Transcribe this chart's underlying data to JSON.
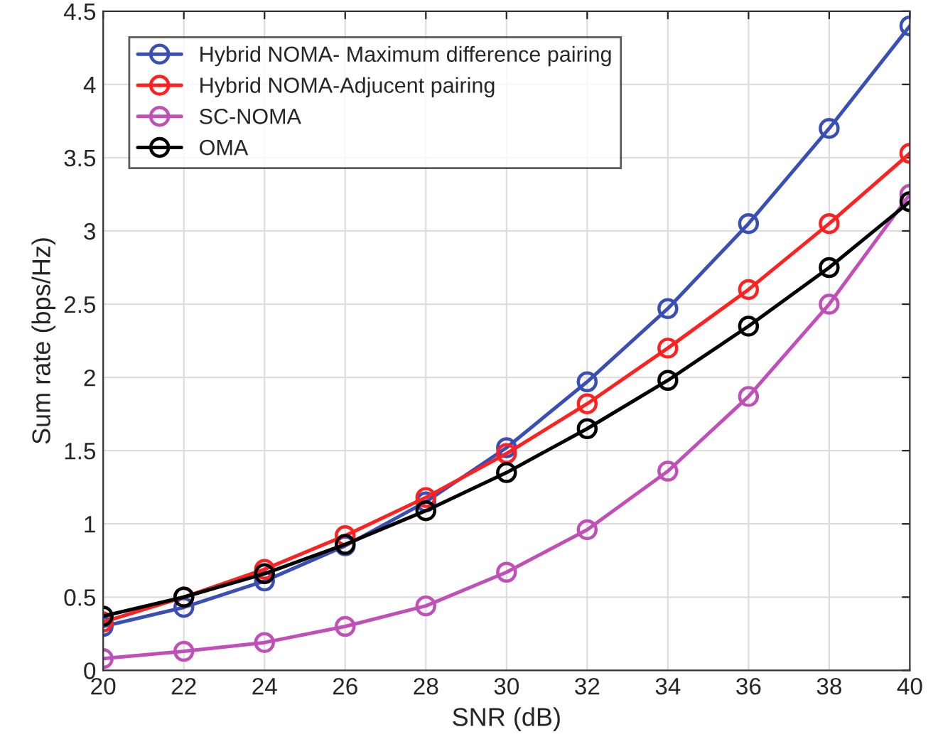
{
  "chart_data": {
    "type": "line",
    "xlabel": "SNR (dB)",
    "ylabel": "Sum rate (bps/Hz)",
    "x": [
      20,
      22,
      24,
      26,
      28,
      30,
      32,
      34,
      36,
      38,
      40
    ],
    "series": [
      {
        "name": "Hybrid NOMA- Maximum difference pairing",
        "color": "#3a4fb5",
        "values": [
          0.3,
          0.43,
          0.61,
          0.85,
          1.15,
          1.52,
          1.97,
          2.47,
          3.05,
          3.7,
          4.4
        ]
      },
      {
        "name": "Hybrid NOMA-Adjucent pairing",
        "color": "#ff2020",
        "values": [
          0.33,
          0.5,
          0.69,
          0.92,
          1.18,
          1.48,
          1.82,
          2.2,
          2.6,
          3.05,
          3.53
        ]
      },
      {
        "name": "SC-NOMA",
        "color": "#c050b8",
        "values": [
          0.08,
          0.13,
          0.19,
          0.3,
          0.44,
          0.67,
          0.96,
          1.36,
          1.87,
          2.5,
          3.25
        ]
      },
      {
        "name": "OMA",
        "color": "#000000",
        "values": [
          0.37,
          0.5,
          0.66,
          0.86,
          1.09,
          1.35,
          1.65,
          1.98,
          2.35,
          2.75,
          3.2
        ]
      }
    ],
    "xlim": [
      20,
      40
    ],
    "xticks": [
      20,
      22,
      24,
      26,
      28,
      30,
      32,
      34,
      36,
      38,
      40
    ],
    "ylim": [
      0,
      4.5
    ],
    "yticks": [
      0,
      0.5,
      1,
      1.5,
      2,
      2.5,
      3,
      3.5,
      4,
      4.5
    ],
    "grid": true,
    "legend": "top left",
    "marker": "circle",
    "line_style": "solid"
  }
}
